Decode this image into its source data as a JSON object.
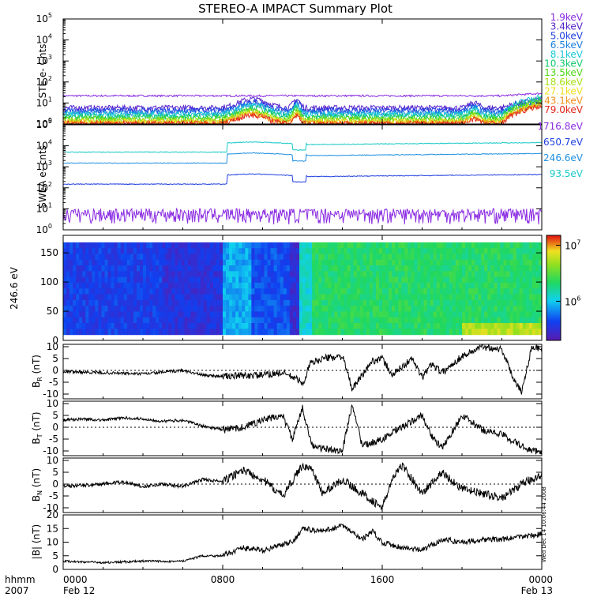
{
  "title": "STEREO-A IMPACT Summary Plot",
  "stamp": "Wed Dec 14 10:06:44 2008",
  "time_axis": {
    "label_top": "hhmm",
    "label_bottom": "2007",
    "ticks": [
      {
        "t": 0,
        "label": "0000",
        "sub": "Feb 12"
      },
      {
        "t": 8,
        "label": "0800",
        "sub": ""
      },
      {
        "t": 16,
        "label": "1600",
        "sub": ""
      },
      {
        "t": 24,
        "label": "0000",
        "sub": "Feb 13"
      }
    ],
    "range_hours": [
      0,
      24
    ]
  },
  "chart_data": [
    {
      "id": "ste",
      "type": "line",
      "ylabel": "STE e- Cnts",
      "yscale": "log",
      "ylim": [
        1,
        100000
      ],
      "ytick_exponents": [
        0,
        1,
        2,
        3,
        4,
        5
      ],
      "series": [
        {
          "name": "1.9keV",
          "color": "#8a2be2",
          "base": 22
        },
        {
          "name": "3.4keV",
          "color": "#5522cc",
          "base": 6
        },
        {
          "name": "5.0keV",
          "color": "#1f3fe0",
          "base": 4.5
        },
        {
          "name": "6.5keV",
          "color": "#1f7fe0",
          "base": 3.5
        },
        {
          "name": "8.1keV",
          "color": "#18c8d8",
          "base": 3
        },
        {
          "name": "10.3keV",
          "color": "#12c870",
          "base": 2.3
        },
        {
          "name": "13.5keV",
          "color": "#50d818",
          "base": 1.8
        },
        {
          "name": "18.6keV",
          "color": "#a8e018",
          "base": 1.5
        },
        {
          "name": "27.1keV",
          "color": "#f0e020",
          "base": 1.3
        },
        {
          "name": "43.1keV",
          "color": "#f09018",
          "base": 1.15
        },
        {
          "name": "79.0keV",
          "color": "#e02818",
          "base": 1.05
        }
      ]
    },
    {
      "id": "swea",
      "type": "line",
      "ylabel": "SWEA e- cnts",
      "yscale": "log",
      "ylim": [
        1,
        100000
      ],
      "ytick_exponents": [
        0,
        1,
        2,
        3,
        4,
        5
      ],
      "series": [
        {
          "name": "1716.8eV",
          "color": "#8a2be2",
          "base": 6
        },
        {
          "name": "650.7eV",
          "color": "#1f3fe0",
          "base": 150
        },
        {
          "name": "246.6eV",
          "color": "#1f8fe0",
          "base": 1500
        },
        {
          "name": "93.5eV",
          "color": "#18c8c8",
          "base": 5000
        }
      ]
    },
    {
      "id": "pad",
      "type": "heatmap",
      "ylabel": "246.6 eV",
      "ylim": [
        0,
        180
      ],
      "yticks": [
        0,
        50,
        100,
        150
      ],
      "colorbar": {
        "scale": "log",
        "range": [
          200000,
          15000000
        ],
        "ticks": [
          {
            "exp": 6,
            "label": "10"
          },
          {
            "exp": 7,
            "label": "10"
          }
        ]
      }
    },
    {
      "id": "br",
      "type": "line",
      "ylabel_main": "B",
      "ylabel_sub": "R",
      "ylabel_unit": " (nT)",
      "ylim": [
        -12,
        11
      ],
      "yticks": [
        -10,
        -5,
        0,
        5,
        10
      ],
      "anchors": [
        [
          0,
          -0.5
        ],
        [
          2,
          -1
        ],
        [
          4,
          -1.5
        ],
        [
          6,
          0
        ],
        [
          7,
          -2
        ],
        [
          8,
          -2.5
        ],
        [
          10,
          -2
        ],
        [
          11,
          -1
        ],
        [
          11.8,
          -4
        ],
        [
          12,
          -6
        ],
        [
          12.4,
          3
        ],
        [
          13,
          5
        ],
        [
          14,
          6
        ],
        [
          14.5,
          -8
        ],
        [
          15,
          -2
        ],
        [
          15.5,
          4
        ],
        [
          16,
          5
        ],
        [
          16.5,
          -2
        ],
        [
          17.5,
          5
        ],
        [
          18,
          -3
        ],
        [
          18.5,
          3
        ],
        [
          19,
          -1
        ],
        [
          20,
          6
        ],
        [
          21,
          10
        ],
        [
          22,
          9
        ],
        [
          22.5,
          -2
        ],
        [
          23,
          -9
        ],
        [
          23.5,
          10
        ],
        [
          24,
          9
        ]
      ]
    },
    {
      "id": "bt",
      "type": "line",
      "ylabel_main": "B",
      "ylabel_sub": "T",
      "ylabel_unit": " (nT)",
      "ylim": [
        -12,
        11
      ],
      "yticks": [
        -10,
        -5,
        0,
        5,
        10
      ],
      "anchors": [
        [
          0,
          3
        ],
        [
          1,
          3.5
        ],
        [
          2,
          3
        ],
        [
          3,
          4
        ],
        [
          4,
          3.5
        ],
        [
          5,
          2.5
        ],
        [
          6,
          3
        ],
        [
          7,
          0.5
        ],
        [
          8,
          -1
        ],
        [
          9,
          0
        ],
        [
          10,
          3
        ],
        [
          11,
          5
        ],
        [
          11.5,
          -5
        ],
        [
          12,
          8
        ],
        [
          12.5,
          -8
        ],
        [
          13,
          -9
        ],
        [
          14,
          -10
        ],
        [
          14.5,
          10
        ],
        [
          15,
          -8
        ],
        [
          16,
          -5
        ],
        [
          17,
          0
        ],
        [
          18,
          5
        ],
        [
          18.5,
          -4
        ],
        [
          19,
          -9
        ],
        [
          20,
          5
        ],
        [
          21,
          -1
        ],
        [
          22,
          -3
        ],
        [
          23,
          -8
        ],
        [
          23.5,
          -10
        ],
        [
          24,
          -10
        ]
      ]
    },
    {
      "id": "bn",
      "type": "line",
      "ylabel_main": "B",
      "ylabel_sub": "N",
      "ylabel_unit": " (nT)",
      "ylim": [
        -12,
        11
      ],
      "yticks": [
        -10,
        -5,
        0,
        5,
        10
      ],
      "anchors": [
        [
          0,
          -1
        ],
        [
          1,
          -0.5
        ],
        [
          2,
          0
        ],
        [
          3,
          1
        ],
        [
          4,
          -1
        ],
        [
          5,
          0
        ],
        [
          6,
          -1
        ],
        [
          7,
          2
        ],
        [
          8,
          1
        ],
        [
          9,
          6
        ],
        [
          10,
          2
        ],
        [
          11,
          -5
        ],
        [
          12,
          8
        ],
        [
          12.5,
          6
        ],
        [
          13,
          -4
        ],
        [
          14,
          2
        ],
        [
          15,
          -4
        ],
        [
          16,
          -10
        ],
        [
          16.5,
          2
        ],
        [
          17,
          8
        ],
        [
          18,
          -4
        ],
        [
          19,
          5
        ],
        [
          20,
          -2
        ],
        [
          21,
          -4
        ],
        [
          22,
          -6
        ],
        [
          23,
          0
        ],
        [
          24,
          4
        ]
      ]
    },
    {
      "id": "bmag",
      "type": "line",
      "ylabel_main": "|B|",
      "ylabel_sub": "",
      "ylabel_unit": " (nT)",
      "ylim": [
        0,
        20
      ],
      "yticks": [
        0,
        5,
        10,
        15,
        20
      ],
      "anchors": [
        [
          0,
          3
        ],
        [
          2,
          2.5
        ],
        [
          4,
          3
        ],
        [
          6,
          3
        ],
        [
          7,
          5
        ],
        [
          8,
          5
        ],
        [
          9,
          8
        ],
        [
          10,
          7
        ],
        [
          11,
          9
        ],
        [
          11.5,
          10
        ],
        [
          12,
          15
        ],
        [
          13,
          14
        ],
        [
          14,
          16
        ],
        [
          15,
          11
        ],
        [
          15.5,
          14
        ],
        [
          16,
          10
        ],
        [
          17,
          8
        ],
        [
          18,
          7
        ],
        [
          19,
          11
        ],
        [
          20,
          10
        ],
        [
          21,
          11
        ],
        [
          22,
          11
        ],
        [
          23,
          12
        ],
        [
          24,
          13
        ]
      ]
    }
  ]
}
